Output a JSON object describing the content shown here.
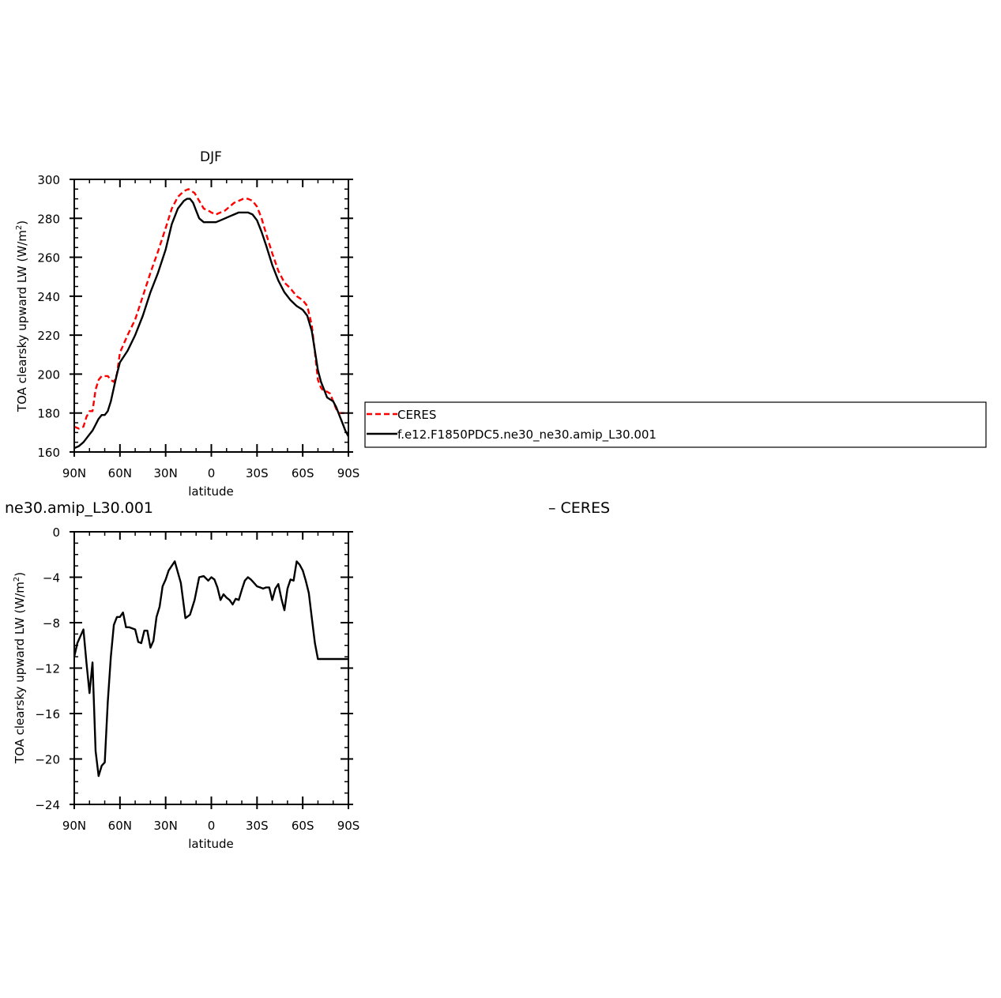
{
  "chart_data": [
    {
      "type": "line",
      "title": "DJF",
      "xlabel": "latitude",
      "ylabel": "TOA clearsky upward LW (W/m",
      "ylabel_superscript": "2",
      "ylabel_suffix": ")",
      "xlim": [
        90,
        -90
      ],
      "ylim": [
        160,
        300
      ],
      "x_ticks": [
        90,
        60,
        30,
        0,
        -30,
        -60,
        -90
      ],
      "x_tick_labels": [
        "90N",
        "60N",
        "30N",
        "0",
        "30S",
        "60S",
        "90S"
      ],
      "y_ticks": [
        160,
        180,
        200,
        220,
        240,
        260,
        280,
        300
      ],
      "y_tick_labels": [
        "160",
        "180",
        "200",
        "220",
        "240",
        "260",
        "280",
        "300"
      ],
      "legend_placement": "right",
      "series": [
        {
          "name": "CERES",
          "color": "#ff0000",
          "dash": "dashed",
          "x": [
            90,
            87,
            84,
            82,
            80,
            78,
            76,
            74,
            72,
            70,
            68,
            66,
            64,
            62,
            60,
            55,
            50,
            45,
            40,
            35,
            30,
            26,
            22,
            18,
            15,
            13,
            11,
            8,
            5,
            2,
            0,
            -3,
            -6,
            -9,
            -12,
            -15,
            -18,
            -21,
            -24,
            -27,
            -30,
            -33,
            -36,
            -40,
            -44,
            -48,
            -52,
            -56,
            -60,
            -63,
            -66,
            -68,
            -70,
            -72,
            -74,
            -76,
            -78,
            -80,
            -82,
            -84,
            -86,
            -88,
            -90
          ],
          "values": [
            173,
            172,
            173,
            178,
            181,
            181,
            192,
            197,
            199,
            199,
            199,
            197,
            196,
            200,
            211,
            220,
            228,
            240,
            252,
            263,
            275,
            285,
            291,
            294,
            295,
            294,
            293,
            289,
            285,
            284,
            283,
            282,
            283,
            284,
            286,
            288,
            289,
            290,
            290,
            289,
            286,
            280,
            272,
            262,
            253,
            247,
            244,
            240,
            238,
            235,
            225,
            211,
            197,
            193,
            191,
            191,
            190,
            186,
            182,
            180,
            180,
            180,
            180
          ]
        },
        {
          "name": "f.e12.F1850PDC5.ne30_ne30.amip_L30.001",
          "color": "#000000",
          "dash": "solid",
          "x": [
            90,
            87,
            84,
            81,
            78,
            76,
            74,
            72,
            70,
            68,
            66,
            64,
            62,
            60,
            55,
            50,
            45,
            40,
            35,
            30,
            26,
            22,
            18,
            16,
            14,
            12,
            10,
            8,
            5,
            2,
            0,
            -3,
            -6,
            -9,
            -12,
            -15,
            -18,
            -21,
            -24,
            -27,
            -30,
            -33,
            -36,
            -40,
            -44,
            -48,
            -52,
            -56,
            -60,
            -63,
            -66,
            -68,
            -70,
            -72,
            -74,
            -76,
            -78,
            -80,
            -82,
            -84,
            -86,
            -88,
            -90
          ],
          "values": [
            162,
            163,
            165,
            168,
            171,
            174,
            177,
            179,
            179,
            181,
            186,
            193,
            200,
            206,
            212,
            220,
            230,
            242,
            252,
            264,
            277,
            285,
            289,
            290,
            290,
            288,
            284,
            280,
            278,
            278,
            278,
            278,
            279,
            280,
            281,
            282,
            283,
            283,
            283,
            282,
            279,
            273,
            266,
            256,
            248,
            242,
            238,
            235,
            233,
            230,
            222,
            212,
            202,
            196,
            192,
            188,
            187,
            186,
            183,
            179,
            175,
            171,
            168
          ]
        }
      ]
    },
    {
      "type": "line",
      "title": "ne30.amip_L30.001",
      "title2": "– CERES",
      "xlabel": "latitude",
      "ylabel": "TOA clearsky upward LW (W/m",
      "ylabel_superscript": "2",
      "ylabel_suffix": ")",
      "xlim": [
        90,
        -90
      ],
      "ylim": [
        -24,
        0
      ],
      "x_ticks": [
        90,
        60,
        30,
        0,
        -30,
        -60,
        -90
      ],
      "x_tick_labels": [
        "90N",
        "60N",
        "30N",
        "0",
        "30S",
        "60S",
        "90S"
      ],
      "y_ticks": [
        -24,
        -20,
        -16,
        -12,
        -8,
        -4,
        0
      ],
      "y_tick_labels": [
        "−24",
        "−20",
        "−16",
        "−12",
        "−8",
        "−4",
        "0"
      ],
      "series": [
        {
          "color": "#000000",
          "dash": "solid",
          "x": [
            90,
            88,
            86,
            84,
            82,
            80,
            78,
            76,
            74,
            72,
            70,
            68,
            66,
            64,
            62,
            60,
            58,
            56,
            54,
            50,
            48,
            46,
            44,
            42,
            40,
            38,
            36,
            34,
            32,
            30,
            28,
            24,
            20,
            17,
            14,
            11,
            8,
            5,
            2,
            0,
            -2,
            -4,
            -6,
            -8,
            -10,
            -12,
            -14,
            -16,
            -18,
            -20,
            -22,
            -24,
            -26,
            -28,
            -30,
            -32,
            -34,
            -36,
            -38,
            -40,
            -42,
            -44,
            -46,
            -48,
            -50,
            -52,
            -54,
            -56,
            -58,
            -60,
            -62,
            -64,
            -66,
            -68,
            -70,
            -72,
            -74,
            -76,
            -78,
            -80,
            -82,
            -84,
            -86,
            -88,
            -90
          ],
          "values": [
            -11.0,
            -9.8,
            -9.2,
            -8.6,
            -11.5,
            -14.2,
            -11.5,
            -19.3,
            -21.5,
            -20.6,
            -20.3,
            -15.0,
            -11.0,
            -8.2,
            -7.5,
            -7.5,
            -7.1,
            -8.4,
            -8.4,
            -8.6,
            -9.7,
            -9.8,
            -8.7,
            -8.7,
            -10.2,
            -9.6,
            -7.5,
            -6.6,
            -4.8,
            -4.2,
            -3.4,
            -2.6,
            -4.5,
            -7.6,
            -7.3,
            -6.0,
            -4.0,
            -3.9,
            -4.3,
            -4.0,
            -4.2,
            -4.9,
            -6.0,
            -5.5,
            -5.8,
            -6.0,
            -6.4,
            -5.9,
            -6.0,
            -5.1,
            -4.3,
            -4.0,
            -4.2,
            -4.5,
            -4.8,
            -4.9,
            -5.0,
            -4.9,
            -4.9,
            -6.0,
            -5.0,
            -4.6,
            -5.9,
            -6.9,
            -5.0,
            -4.2,
            -4.3,
            -2.6,
            -2.9,
            -3.4,
            -4.3,
            -5.4,
            -7.6,
            -9.8,
            -11.2,
            -11.2,
            -11.2,
            -11.2,
            -11.2,
            -11.2,
            -11.2,
            -11.2,
            -11.2,
            -11.2,
            -11.2
          ]
        }
      ]
    }
  ]
}
